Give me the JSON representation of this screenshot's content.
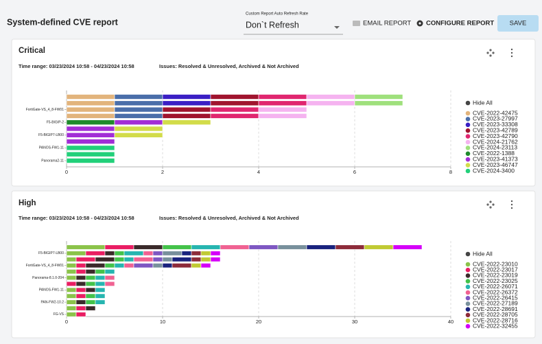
{
  "header": {
    "title": "System-defined CVE report",
    "refresh_label": "Custom Report Auto Refresh Rate",
    "refresh_value": "Don`t Refresh",
    "email": "EMAIL REPORT",
    "configure": "CONFIGURE REPORT",
    "save": "SAVE"
  },
  "chart_data": [
    {
      "type": "stacked-barh",
      "title": "Critical",
      "time_range": "Time range: 03/23/2024 10:58 - 04/23/2024 10:58",
      "issues": "Issues: Resolved & Unresolved, Archived & Not Archived",
      "legend_toggle": "Hide All",
      "categories": [
        null,
        null,
        "FortiGate-VS_4_8-FW01",
        null,
        "F5-BIGIP-2",
        null,
        "F5-BIGIP7-LB00",
        null,
        "PANOS-FW1-11",
        null,
        "Panorama2-11"
      ],
      "series": [
        {
          "name": "CVE-2022-42475",
          "color": "#e2b47c",
          "values": [
            1,
            1,
            1,
            1,
            0,
            0,
            0,
            0,
            0,
            0,
            0
          ]
        },
        {
          "name": "CVE-2023-27997",
          "color": "#4a6ea9",
          "values": [
            1,
            1,
            1,
            1,
            0,
            0,
            0,
            0,
            0,
            0,
            0
          ]
        },
        {
          "name": "CVE-2023-33308",
          "color": "#3a1fc4",
          "values": [
            1,
            1,
            0,
            0,
            0,
            0,
            0,
            0,
            0,
            0,
            0
          ]
        },
        {
          "name": "CVE-2023-42789",
          "color": "#a0142e",
          "values": [
            1,
            1,
            1,
            1,
            0,
            0,
            0,
            0,
            0,
            0,
            0
          ]
        },
        {
          "name": "CVE-2023-42790",
          "color": "#e0266f",
          "values": [
            1,
            1,
            1,
            1,
            0,
            0,
            0,
            0,
            0,
            0,
            0
          ]
        },
        {
          "name": "CVE-2024-21762",
          "color": "#f5b3f0",
          "values": [
            1,
            1,
            1,
            1,
            0,
            0,
            0,
            0,
            0,
            0,
            0
          ]
        },
        {
          "name": "CVE-2024-23113",
          "color": "#9fe07c",
          "values": [
            1,
            1,
            0,
            0,
            0,
            0,
            0,
            0,
            0,
            0,
            0
          ]
        },
        {
          "name": "CVE-2022-1388",
          "color": "#1f8a2c",
          "values": [
            0,
            0,
            0,
            0,
            1,
            0,
            0,
            0,
            0,
            0,
            0
          ]
        },
        {
          "name": "CVE-2023-41373",
          "color": "#a22ed6",
          "values": [
            0,
            0,
            0,
            0,
            1,
            1,
            1,
            1,
            0,
            0,
            0
          ]
        },
        {
          "name": "CVE-2023-46747",
          "color": "#d2dc4a",
          "values": [
            0,
            0,
            0,
            0,
            1,
            1,
            1,
            0,
            0,
            0,
            0
          ]
        },
        {
          "name": "CVE-2024-3400",
          "color": "#22d07a",
          "values": [
            0,
            0,
            0,
            0,
            0,
            0,
            0,
            0,
            1,
            1,
            1
          ]
        }
      ],
      "xlim": [
        0,
        8
      ],
      "xticks": [
        0,
        2,
        4,
        6,
        8
      ],
      "grid": true
    },
    {
      "type": "stacked-barh",
      "title": "High",
      "time_range": "Time range: 03/23/2024 10:58 - 04/23/2024 10:58",
      "issues": "Issues: Resolved & Unresolved, Archived & Not Archived",
      "legend_toggle": "Hide All",
      "categories": [
        null,
        "F5-BIGIP7-LB00",
        null,
        "FortiGate-VS_4_8-FW01",
        null,
        "Panorama-8.1.0-204",
        null,
        "PANOS-FW1-11",
        null,
        "PAN-FW2-10.2",
        null,
        "FG-VS"
      ],
      "series": [
        {
          "name": "CVE-2022-23010",
          "color": "#8bc34a",
          "values": [
            4,
            2,
            1,
            1,
            1,
            1,
            0,
            1,
            1,
            1,
            1,
            1
          ]
        },
        {
          "name": "CVE-2022-23017",
          "color": "#e91e63",
          "values": [
            3,
            2,
            2,
            1,
            1,
            0,
            1,
            1,
            1,
            0,
            1,
            1
          ]
        },
        {
          "name": "CVE-2022-23019",
          "color": "#3a2a2a",
          "values": [
            3,
            1,
            2,
            2,
            1,
            1,
            1,
            1,
            0,
            1,
            1,
            0
          ]
        },
        {
          "name": "CVE-2022-23025",
          "color": "#43c24a",
          "values": [
            3,
            1,
            1,
            1,
            1,
            1,
            1,
            0,
            1,
            1,
            0,
            0
          ]
        },
        {
          "name": "CVE-2022-26071",
          "color": "#26b5b0",
          "values": [
            3,
            2,
            1,
            1,
            1,
            1,
            1,
            1,
            1,
            1,
            0,
            0
          ]
        },
        {
          "name": "CVE-2022-26372",
          "color": "#f06292",
          "values": [
            3,
            1,
            2,
            1,
            0,
            1,
            1,
            0,
            0,
            0,
            0,
            0
          ]
        },
        {
          "name": "CVE-2022-26415",
          "color": "#7e57c2",
          "values": [
            3,
            1,
            1,
            2,
            0,
            0,
            0,
            0,
            0,
            0,
            0,
            0
          ]
        },
        {
          "name": "CVE-2022-27189",
          "color": "#78909c",
          "values": [
            3,
            2,
            1,
            1,
            0,
            0,
            0,
            0,
            0,
            0,
            0,
            0
          ]
        },
        {
          "name": "CVE-2022-28691",
          "color": "#1a237e",
          "values": [
            3,
            1,
            2,
            1,
            0,
            0,
            0,
            0,
            0,
            0,
            0,
            0
          ]
        },
        {
          "name": "CVE-2022-28705",
          "color": "#8d2b3a",
          "values": [
            3,
            1,
            1,
            2,
            0,
            0,
            0,
            0,
            0,
            0,
            0,
            0
          ]
        },
        {
          "name": "CVE-2022-28716",
          "color": "#c0ca33",
          "values": [
            3,
            1,
            1,
            1,
            0,
            0,
            0,
            0,
            0,
            0,
            0,
            0
          ]
        },
        {
          "name": "CVE-2022-32455",
          "color": "#d500f9",
          "values": [
            3,
            1,
            1,
            1,
            0,
            0,
            0,
            0,
            0,
            0,
            0,
            0
          ]
        }
      ],
      "xlim": [
        0,
        40
      ],
      "xticks": [
        0,
        10,
        20,
        30,
        40
      ],
      "grid": true
    }
  ]
}
